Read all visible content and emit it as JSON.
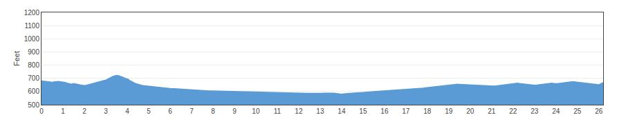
{
  "chart_data": {
    "type": "area",
    "ylabel": "Feet",
    "x": [
      0,
      0.2,
      0.4,
      0.5,
      0.6,
      0.8,
      1.0,
      1.1,
      1.2,
      1.3,
      1.4,
      1.5,
      1.6,
      1.7,
      1.8,
      1.9,
      2.0,
      2.1,
      2.2,
      2.3,
      2.4,
      2.5,
      2.6,
      2.7,
      2.8,
      2.85,
      2.9,
      3.0,
      3.05,
      3.1,
      3.2,
      3.3,
      3.4,
      3.5,
      3.6,
      3.65,
      3.7,
      3.75,
      3.8,
      3.9,
      4.0,
      4.05,
      4.1,
      4.15,
      4.2,
      4.3,
      4.4,
      4.5,
      4.6,
      4.7,
      4.8,
      4.9,
      5.0,
      5.2,
      5.4,
      5.6,
      5.8,
      6.0,
      6.2,
      6.4,
      6.5,
      6.6,
      6.7,
      6.8,
      6.85,
      7.0,
      7.2,
      7.4,
      7.6,
      7.8,
      8.0,
      8.2,
      8.4,
      8.6,
      8.8,
      9.0,
      9.2,
      9.4,
      9.6,
      9.8,
      10.0,
      10.2,
      10.4,
      10.6,
      10.8,
      11.0,
      11.2,
      11.4,
      11.6,
      11.8,
      12.0,
      12.2,
      12.4,
      12.6,
      12.8,
      13.0,
      13.1,
      13.2,
      13.3,
      13.4,
      13.5,
      13.6,
      13.7,
      13.8,
      13.9,
      14.0,
      14.1,
      14.2,
      14.3,
      14.5,
      14.7,
      14.9,
      15.0,
      15.2,
      15.4,
      15.6,
      15.8,
      16.0,
      16.2,
      16.4,
      16.6,
      16.8,
      17.0,
      17.2,
      17.4,
      17.5,
      17.6,
      17.7,
      17.8,
      17.9,
      18.0,
      18.1,
      18.2,
      18.3,
      18.4,
      18.5,
      18.6,
      18.7,
      18.8,
      18.9,
      19.0,
      19.1,
      19.2,
      19.3,
      19.4,
      19.5,
      19.6,
      19.7,
      19.8,
      19.9,
      20.0,
      20.1,
      20.2,
      20.3,
      20.4,
      20.5,
      20.6,
      20.7,
      20.8,
      20.9,
      21.0,
      21.1,
      21.2,
      21.3,
      21.4,
      21.5,
      21.6,
      21.7,
      21.8,
      21.9,
      22.0,
      22.1,
      22.2,
      22.3,
      22.4,
      22.5,
      22.6,
      22.7,
      22.8,
      22.9,
      23.0,
      23.1,
      23.2,
      23.3,
      23.4,
      23.5,
      23.6,
      23.7,
      23.8,
      23.9,
      24.0,
      24.1,
      24.2,
      24.3,
      24.4,
      24.5,
      24.6,
      24.7,
      24.8,
      24.9,
      25.0,
      25.1,
      25.2,
      25.3,
      25.4,
      25.5,
      25.6,
      25.7,
      25.8,
      25.9,
      26.0,
      26.1,
      26.2
    ],
    "values": [
      680,
      678,
      672,
      670,
      674,
      676,
      672,
      668,
      663,
      658,
      655,
      660,
      656,
      652,
      650,
      648,
      645,
      648,
      652,
      656,
      660,
      665,
      670,
      675,
      678,
      682,
      680,
      685,
      690,
      695,
      705,
      712,
      718,
      722,
      720,
      718,
      716,
      712,
      708,
      700,
      695,
      692,
      685,
      680,
      675,
      668,
      660,
      654,
      650,
      646,
      644,
      642,
      640,
      636,
      632,
      629,
      626,
      623,
      621,
      619,
      618,
      616,
      614,
      612,
      611,
      610,
      608,
      607,
      606,
      605,
      604,
      603,
      602,
      601,
      600,
      599,
      598,
      597,
      596,
      595,
      594,
      593,
      593,
      592,
      591,
      590,
      589,
      589,
      588,
      588,
      587,
      587,
      586,
      586,
      585,
      585,
      586,
      587,
      588,
      589,
      590,
      588,
      586,
      584,
      582,
      580,
      582,
      584,
      586,
      588,
      590,
      592,
      594,
      596,
      598,
      600,
      602,
      604,
      606,
      608,
      610,
      612,
      614,
      616,
      618,
      620,
      622,
      624,
      626,
      628,
      630,
      632,
      634,
      636,
      638,
      640,
      642,
      644,
      646,
      648,
      650,
      652,
      654,
      656,
      655,
      654,
      653,
      652,
      651,
      650,
      649,
      648,
      647,
      646,
      645,
      644,
      643,
      642,
      641,
      640,
      639,
      641,
      643,
      645,
      647,
      649,
      651,
      653,
      655,
      657,
      659,
      661,
      663,
      661,
      659,
      657,
      655,
      653,
      651,
      649,
      647,
      649,
      651,
      653,
      655,
      657,
      659,
      661,
      663,
      661,
      659,
      661,
      663,
      665,
      667,
      669,
      671,
      673,
      675,
      673,
      671,
      669,
      667,
      665,
      663,
      661,
      659,
      657,
      655,
      653,
      651,
      660,
      668
    ],
    "color": "#5b9bd5",
    "xlim": [
      0,
      26.2
    ],
    "ylim": [
      500,
      1200
    ],
    "xticks": [
      0,
      1,
      2,
      3,
      4,
      5,
      6,
      7,
      8,
      9,
      10,
      11,
      12,
      13,
      14,
      15,
      16,
      17,
      18,
      19,
      20,
      21,
      22,
      23,
      24,
      25,
      26
    ],
    "yticks": [
      500,
      600,
      700,
      800,
      900,
      1000,
      1100,
      1200
    ],
    "grid": true
  }
}
